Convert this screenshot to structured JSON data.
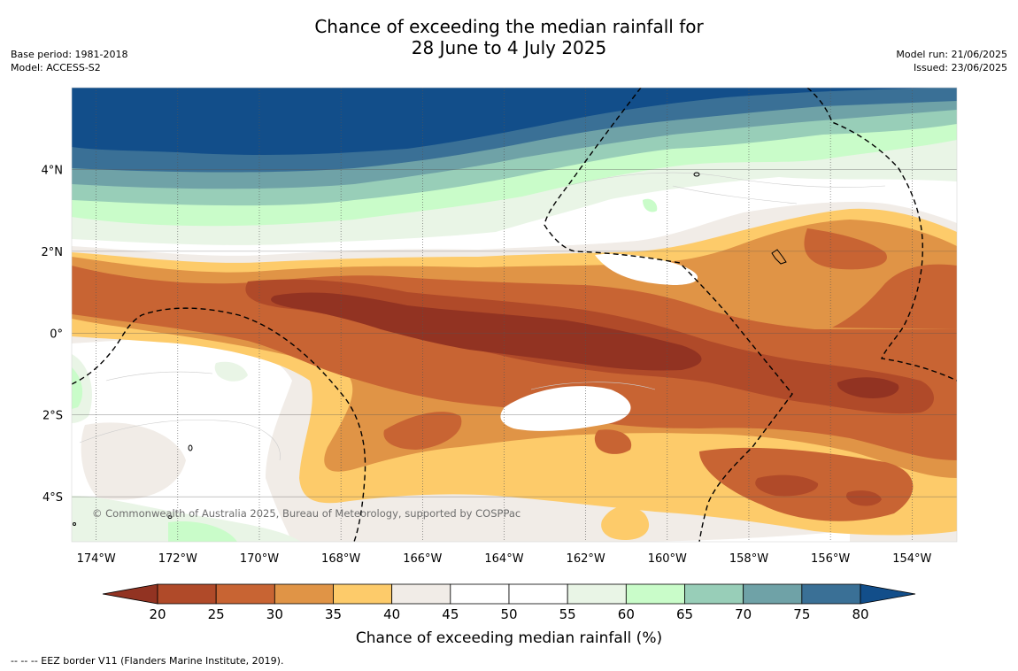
{
  "title": {
    "line1": "Chance of exceeding the median rainfall for",
    "line2": "28 June to 4 July 2025"
  },
  "meta_left": {
    "base_period": "Base period: 1981-2018",
    "model": "Model: ACCESS-S2"
  },
  "meta_right": {
    "model_run": "Model run: 21/06/2025",
    "issued": "Issued: 23/06/2025"
  },
  "map": {
    "lon_range": [
      -174.6,
      -152.9
    ],
    "lat_range": [
      -5.1,
      6.0
    ],
    "lat_labels": [
      "4°N",
      "2°N",
      "0°",
      "2°S",
      "4°S"
    ],
    "lon_labels": [
      "174°W",
      "172°W",
      "170°W",
      "168°W",
      "166°W",
      "164°W",
      "162°W",
      "160°W",
      "158°W",
      "156°W",
      "154°W"
    ],
    "copyright": "© Commonwealth of Australia 2025, Bureau of Meteorology, supported by COSPPac"
  },
  "colorbar": {
    "ticks": [
      "20",
      "25",
      "30",
      "35",
      "40",
      "45",
      "50",
      "55",
      "60",
      "65",
      "70",
      "75",
      "80"
    ],
    "colors": [
      "#923322",
      "#b04a29",
      "#c86433",
      "#e09446",
      "#fdcb6a",
      "#f1ece7",
      "#ffffff",
      "#ffffff",
      "#e9f5e6",
      "#c9fcc9",
      "#98ceb8",
      "#6fa2a7",
      "#3a7096",
      "#124e8a"
    ],
    "label": "Chance of exceeding median rainfall (%)"
  },
  "footnote": "--  --  -- EEZ border V11 (Flanders Marine Institute, 2019)."
}
